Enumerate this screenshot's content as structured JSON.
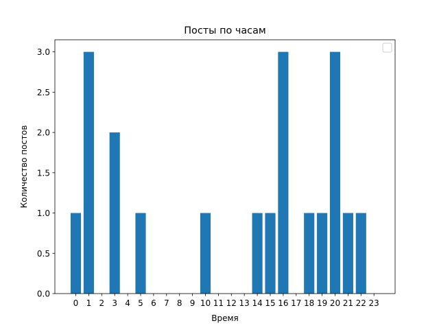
{
  "chart_data": {
    "type": "bar",
    "title": "Посты по часам",
    "xlabel": "Время",
    "ylabel": "Количество постов",
    "categories": [
      "0",
      "1",
      "2",
      "3",
      "4",
      "5",
      "6",
      "7",
      "8",
      "9",
      "10",
      "11",
      "12",
      "13",
      "14",
      "15",
      "16",
      "17",
      "18",
      "19",
      "20",
      "21",
      "22",
      "23"
    ],
    "values": [
      1,
      3,
      0,
      2,
      0,
      1,
      0,
      0,
      0,
      0,
      1,
      0,
      0,
      0,
      1,
      1,
      3,
      0,
      1,
      1,
      3,
      1,
      1,
      0
    ],
    "ylim": [
      0,
      3.15
    ],
    "yticks": [
      "0.0",
      "0.5",
      "1.0",
      "1.5",
      "2.0",
      "2.5",
      "3.0"
    ],
    "bar_color": "#1f77b4",
    "legend": "top-right",
    "grid": false
  }
}
